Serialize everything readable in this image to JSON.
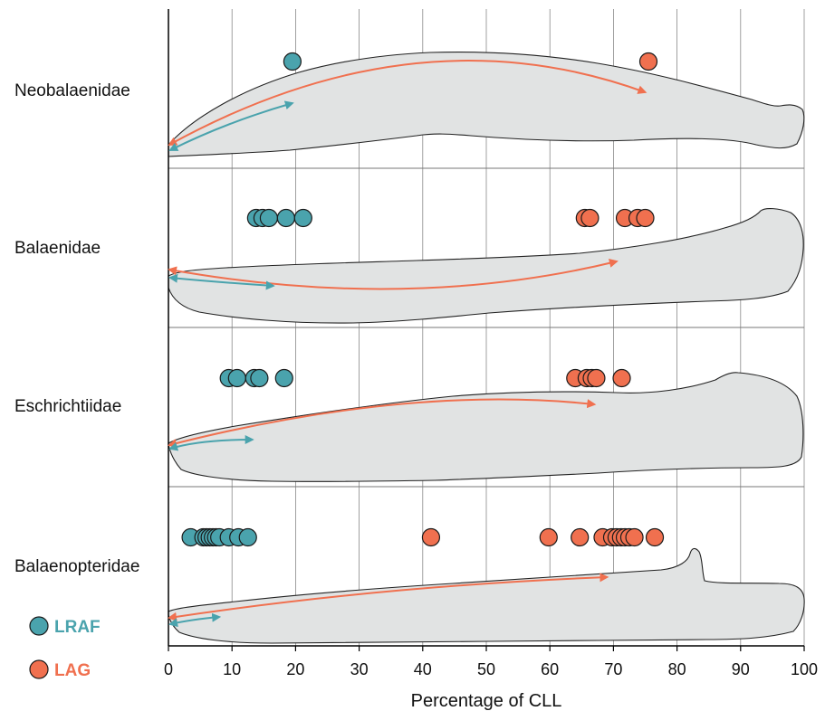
{
  "chart_data": {
    "type": "scatter",
    "xlabel": "Percentage of CLL",
    "xlim": [
      0,
      100
    ],
    "xticks": [
      0,
      10,
      20,
      30,
      40,
      50,
      60,
      70,
      80,
      90,
      100
    ],
    "grid": true,
    "legend_position": "bottom-left",
    "colors": {
      "LRAF": "#4aa3ad",
      "LAG": "#f0704f"
    },
    "legend": [
      {
        "key": "LRAF",
        "label": "LRAF"
      },
      {
        "key": "LAG",
        "label": "LAG"
      }
    ],
    "rows": [
      {
        "label": "Neobalaenidae",
        "LRAF": [
          19.5
        ],
        "LAG": [
          75.5
        ],
        "arrow_LRAF_end": 19.5,
        "arrow_LAG_end": 75
      },
      {
        "label": "Balaenidae",
        "LRAF": [
          13.8,
          14.8,
          15.8,
          18.5,
          21.2
        ],
        "LAG": [
          65.5,
          66.3,
          71.8,
          73.8,
          75.0
        ],
        "arrow_LRAF_end": 16.5,
        "arrow_LAG_end": 70.5
      },
      {
        "label": "Eschrichtiidae",
        "LRAF": [
          9.5,
          10.8,
          13.5,
          14.3,
          18.2
        ],
        "LAG": [
          64.0,
          65.8,
          66.6,
          67.3,
          71.3
        ],
        "arrow_LRAF_end": 13.2,
        "arrow_LAG_end": 67
      },
      {
        "label": "Balaenopteridae",
        "LRAF": [
          3.5,
          5.5,
          6.0,
          6.5,
          7.0,
          7.5,
          8.0,
          9.5,
          11.0,
          12.5
        ],
        "LAG": [
          41.3,
          59.8,
          64.7,
          68.3,
          69.8,
          70.5,
          71.2,
          71.8,
          72.5,
          73.3,
          76.5
        ],
        "arrow_LRAF_end": 8.0,
        "arrow_LAG_end": 69
      }
    ]
  }
}
